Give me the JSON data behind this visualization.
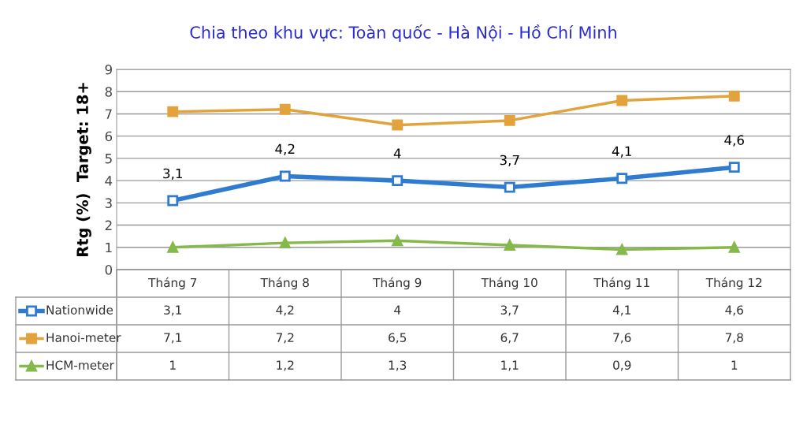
{
  "chart_data": {
    "type": "line",
    "title": "Chia theo khu vực: Toàn quốc - Hà Nội - Hồ Chí Minh",
    "ylabel": "Rtg (%)  Target: 18+",
    "categories": [
      "Tháng 7",
      "Tháng 8",
      "Tháng 9",
      "Tháng 10",
      "Tháng 11",
      "Tháng 12"
    ],
    "series": [
      {
        "name": "Nationwide",
        "color": "#2f7bd0",
        "values": [
          3.1,
          4.2,
          4,
          3.7,
          4.1,
          4.6
        ],
        "value_labels": [
          "3,1",
          "4,2",
          "4",
          "3,7",
          "4,1",
          "4,6"
        ],
        "marker": "square"
      },
      {
        "name": "Hanoi-meter",
        "color": "#e3a33c",
        "values": [
          7.1,
          7.2,
          6.5,
          6.7,
          7.6,
          7.8
        ],
        "value_labels": [
          "7,1",
          "7,2",
          "6,5",
          "6,7",
          "7,6",
          "7,8"
        ],
        "marker": "square"
      },
      {
        "name": "HCM-meter",
        "color": "#86b94c",
        "values": [
          1,
          1.2,
          1.3,
          1.1,
          0.9,
          1
        ],
        "value_labels": [
          "1",
          "1,2",
          "1,3",
          "1,1",
          "0,9",
          "1"
        ],
        "marker": "triangle"
      }
    ],
    "annotations": [
      {
        "text": "3,1",
        "x": "Tháng 7",
        "y": 3.1
      },
      {
        "text": "4,2",
        "x": "Tháng 8",
        "y": 4.2
      },
      {
        "text": "4",
        "x": "Tháng 9",
        "y": 4
      },
      {
        "text": "3,7",
        "x": "Tháng 10",
        "y": 3.7
      },
      {
        "text": "4,1",
        "x": "Tháng 11",
        "y": 4.1
      },
      {
        "text": "4,6",
        "x": "Tháng 12",
        "y": 4.6
      }
    ],
    "ylim": [
      0,
      9
    ],
    "yticks": [
      0,
      1,
      2,
      3,
      4,
      5,
      6,
      7,
      8,
      9
    ],
    "grid": "y",
    "legend": "bottom",
    "line_style": "solid"
  }
}
